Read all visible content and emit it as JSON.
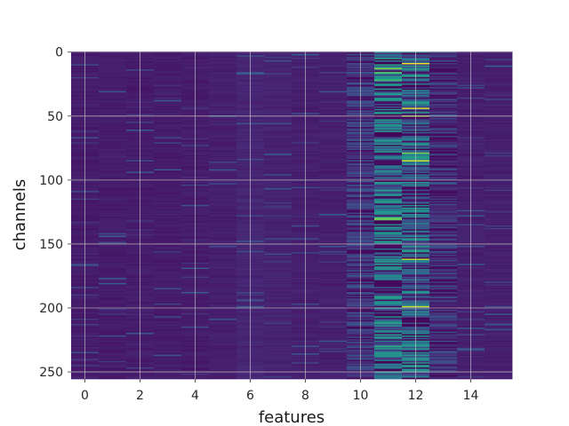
{
  "chart_data": {
    "type": "heatmap",
    "title": "",
    "xlabel": "features",
    "ylabel": "channels",
    "n_columns": 16,
    "n_rows": 256,
    "xlim": [
      -0.5,
      15.5
    ],
    "ylim": [
      255.5,
      -0.5
    ],
    "xticks": [
      0,
      2,
      4,
      6,
      8,
      10,
      12,
      14
    ],
    "yticks": [
      0,
      50,
      100,
      150,
      200,
      250
    ],
    "grid": true,
    "colormap": "viridis",
    "colors": {
      "low": "#440154",
      "background": "#47307a",
      "mid": "#2b7a8c",
      "high": "#fde725",
      "grid": "#cfcfcf"
    },
    "column_levels": [
      0.08,
      0.08,
      0.08,
      0.08,
      0.08,
      0.09,
      0.11,
      0.1,
      0.09,
      0.09,
      0.16,
      0.3,
      0.24,
      0.14,
      0.09,
      0.09
    ],
    "bright_cells": [
      {
        "x": 11,
        "y": 5,
        "value": 0.62
      },
      {
        "x": 12,
        "y": 9,
        "value": 0.98
      },
      {
        "x": 11,
        "y": 13,
        "value": 0.82
      },
      {
        "x": 11,
        "y": 16,
        "value": 0.75
      },
      {
        "x": 11,
        "y": 22,
        "value": 0.7
      },
      {
        "x": 12,
        "y": 44,
        "value": 0.95
      },
      {
        "x": 11,
        "y": 48,
        "value": 0.55
      },
      {
        "x": 12,
        "y": 50,
        "value": 0.85
      },
      {
        "x": 12,
        "y": 79,
        "value": 0.8
      },
      {
        "x": 12,
        "y": 85,
        "value": 0.95
      },
      {
        "x": 11,
        "y": 108,
        "value": 0.6
      },
      {
        "x": 11,
        "y": 112,
        "value": 0.55
      },
      {
        "x": 11,
        "y": 130,
        "value": 0.8
      },
      {
        "x": 11,
        "y": 131,
        "value": 0.75
      },
      {
        "x": 12,
        "y": 162,
        "value": 0.9
      },
      {
        "x": 12,
        "y": 199,
        "value": 0.92
      },
      {
        "x": 11,
        "y": 230,
        "value": 0.65
      },
      {
        "x": 12,
        "y": 232,
        "value": 0.55
      }
    ]
  }
}
